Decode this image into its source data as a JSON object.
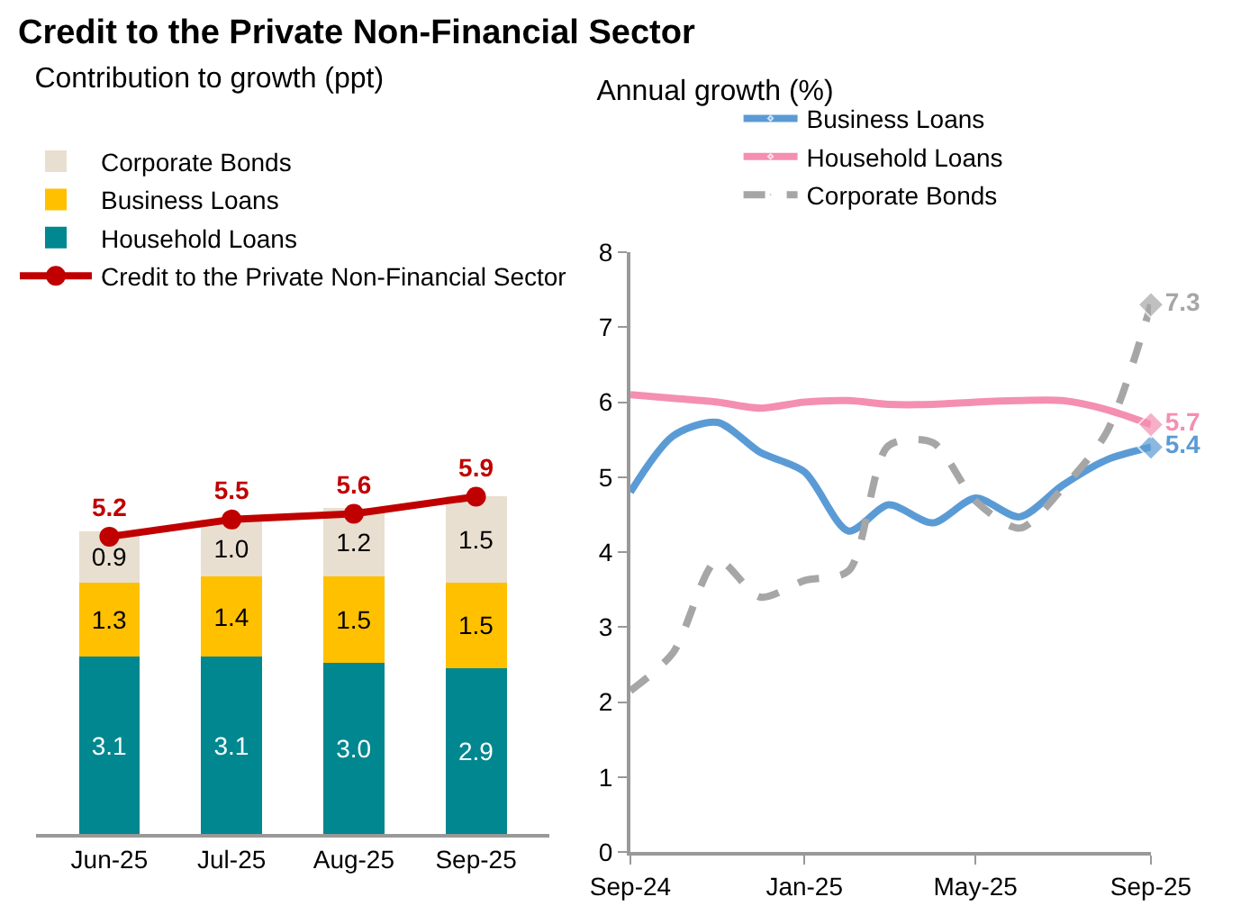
{
  "chart_data": [
    {
      "type": "bar",
      "title": "Credit to the Private Non-Financial Sector",
      "subtitle": "Contribution to growth (ppt)",
      "categories": [
        "Jun-25",
        "Jul-25",
        "Aug-25",
        "Sep-25"
      ],
      "stacked": true,
      "legend": "top",
      "series": [
        {
          "name": "Household Loans",
          "color": "#00878f",
          "values": [
            3.1,
            3.1,
            3.0,
            2.9
          ],
          "value_labels": [
            "3.1",
            "3.1",
            "3.0",
            "2.9"
          ]
        },
        {
          "name": "Business Loans",
          "color": "#ffc000",
          "values": [
            1.3,
            1.4,
            1.5,
            1.5
          ],
          "value_labels": [
            "1.3",
            "1.4",
            "1.5",
            "1.5"
          ]
        },
        {
          "name": "Corporate Bonds",
          "color": "#e8dfd0",
          "values": [
            0.9,
            1.0,
            1.2,
            1.5
          ],
          "value_labels": [
            "0.9",
            "1.0",
            "1.2",
            "1.5"
          ]
        },
        {
          "name": "Credit to the Private Non-Financial Sector",
          "type": "line",
          "marker": "circle",
          "color": "#c00000",
          "values": [
            5.2,
            5.5,
            5.6,
            5.9
          ],
          "value_labels": [
            "5.2",
            "5.5",
            "5.6",
            "5.9"
          ]
        }
      ]
    },
    {
      "type": "line",
      "title": "Annual growth (%)",
      "legend": "top",
      "grid": false,
      "x": [
        "2024-09",
        "2024-10",
        "2024-11",
        "2024-12",
        "2025-01",
        "2025-02",
        "2025-03",
        "2025-04",
        "2025-05",
        "2025-06",
        "2025-07",
        "2025-08",
        "2025-09"
      ],
      "xlim": [
        "2024-09",
        "2025-09"
      ],
      "xticks": [
        {
          "value": "2024-09",
          "label": "Sep-24"
        },
        {
          "value": "2025-01",
          "label": "Jan-25"
        },
        {
          "value": "2025-05",
          "label": "May-25"
        },
        {
          "value": "2025-09",
          "label": "Sep-25"
        }
      ],
      "ylim": [
        0,
        8
      ],
      "yticks": [
        0,
        1,
        2,
        3,
        4,
        5,
        6,
        7,
        8
      ],
      "series": [
        {
          "name": "Business Loans",
          "color": "#5b9bd5",
          "line_style": "solid",
          "values": [
            4.8,
            5.55,
            5.73,
            5.33,
            5.07,
            4.28,
            4.63,
            4.39,
            4.72,
            4.47,
            4.89,
            5.23,
            5.4
          ],
          "value_labels": [
            null,
            null,
            null,
            null,
            null,
            null,
            null,
            null,
            null,
            null,
            null,
            null,
            "5.4"
          ]
        },
        {
          "name": "Household Loans",
          "color": "#f48fb1",
          "line_style": "solid",
          "values": [
            6.1,
            6.05,
            6.0,
            5.92,
            6.0,
            6.02,
            5.97,
            5.97,
            6.0,
            6.02,
            6.02,
            5.9,
            5.7
          ],
          "value_labels": [
            null,
            null,
            null,
            null,
            null,
            null,
            null,
            null,
            null,
            null,
            null,
            null,
            "5.7"
          ]
        },
        {
          "name": "Corporate Bonds",
          "color": "#a6a6a6",
          "line_style": "dashed",
          "values": [
            2.15,
            2.66,
            3.89,
            3.4,
            3.62,
            3.75,
            5.42,
            5.46,
            4.68,
            4.32,
            4.85,
            5.6,
            7.3
          ],
          "value_labels": [
            null,
            null,
            null,
            null,
            null,
            null,
            null,
            null,
            null,
            null,
            null,
            null,
            "7.3"
          ]
        }
      ]
    }
  ]
}
